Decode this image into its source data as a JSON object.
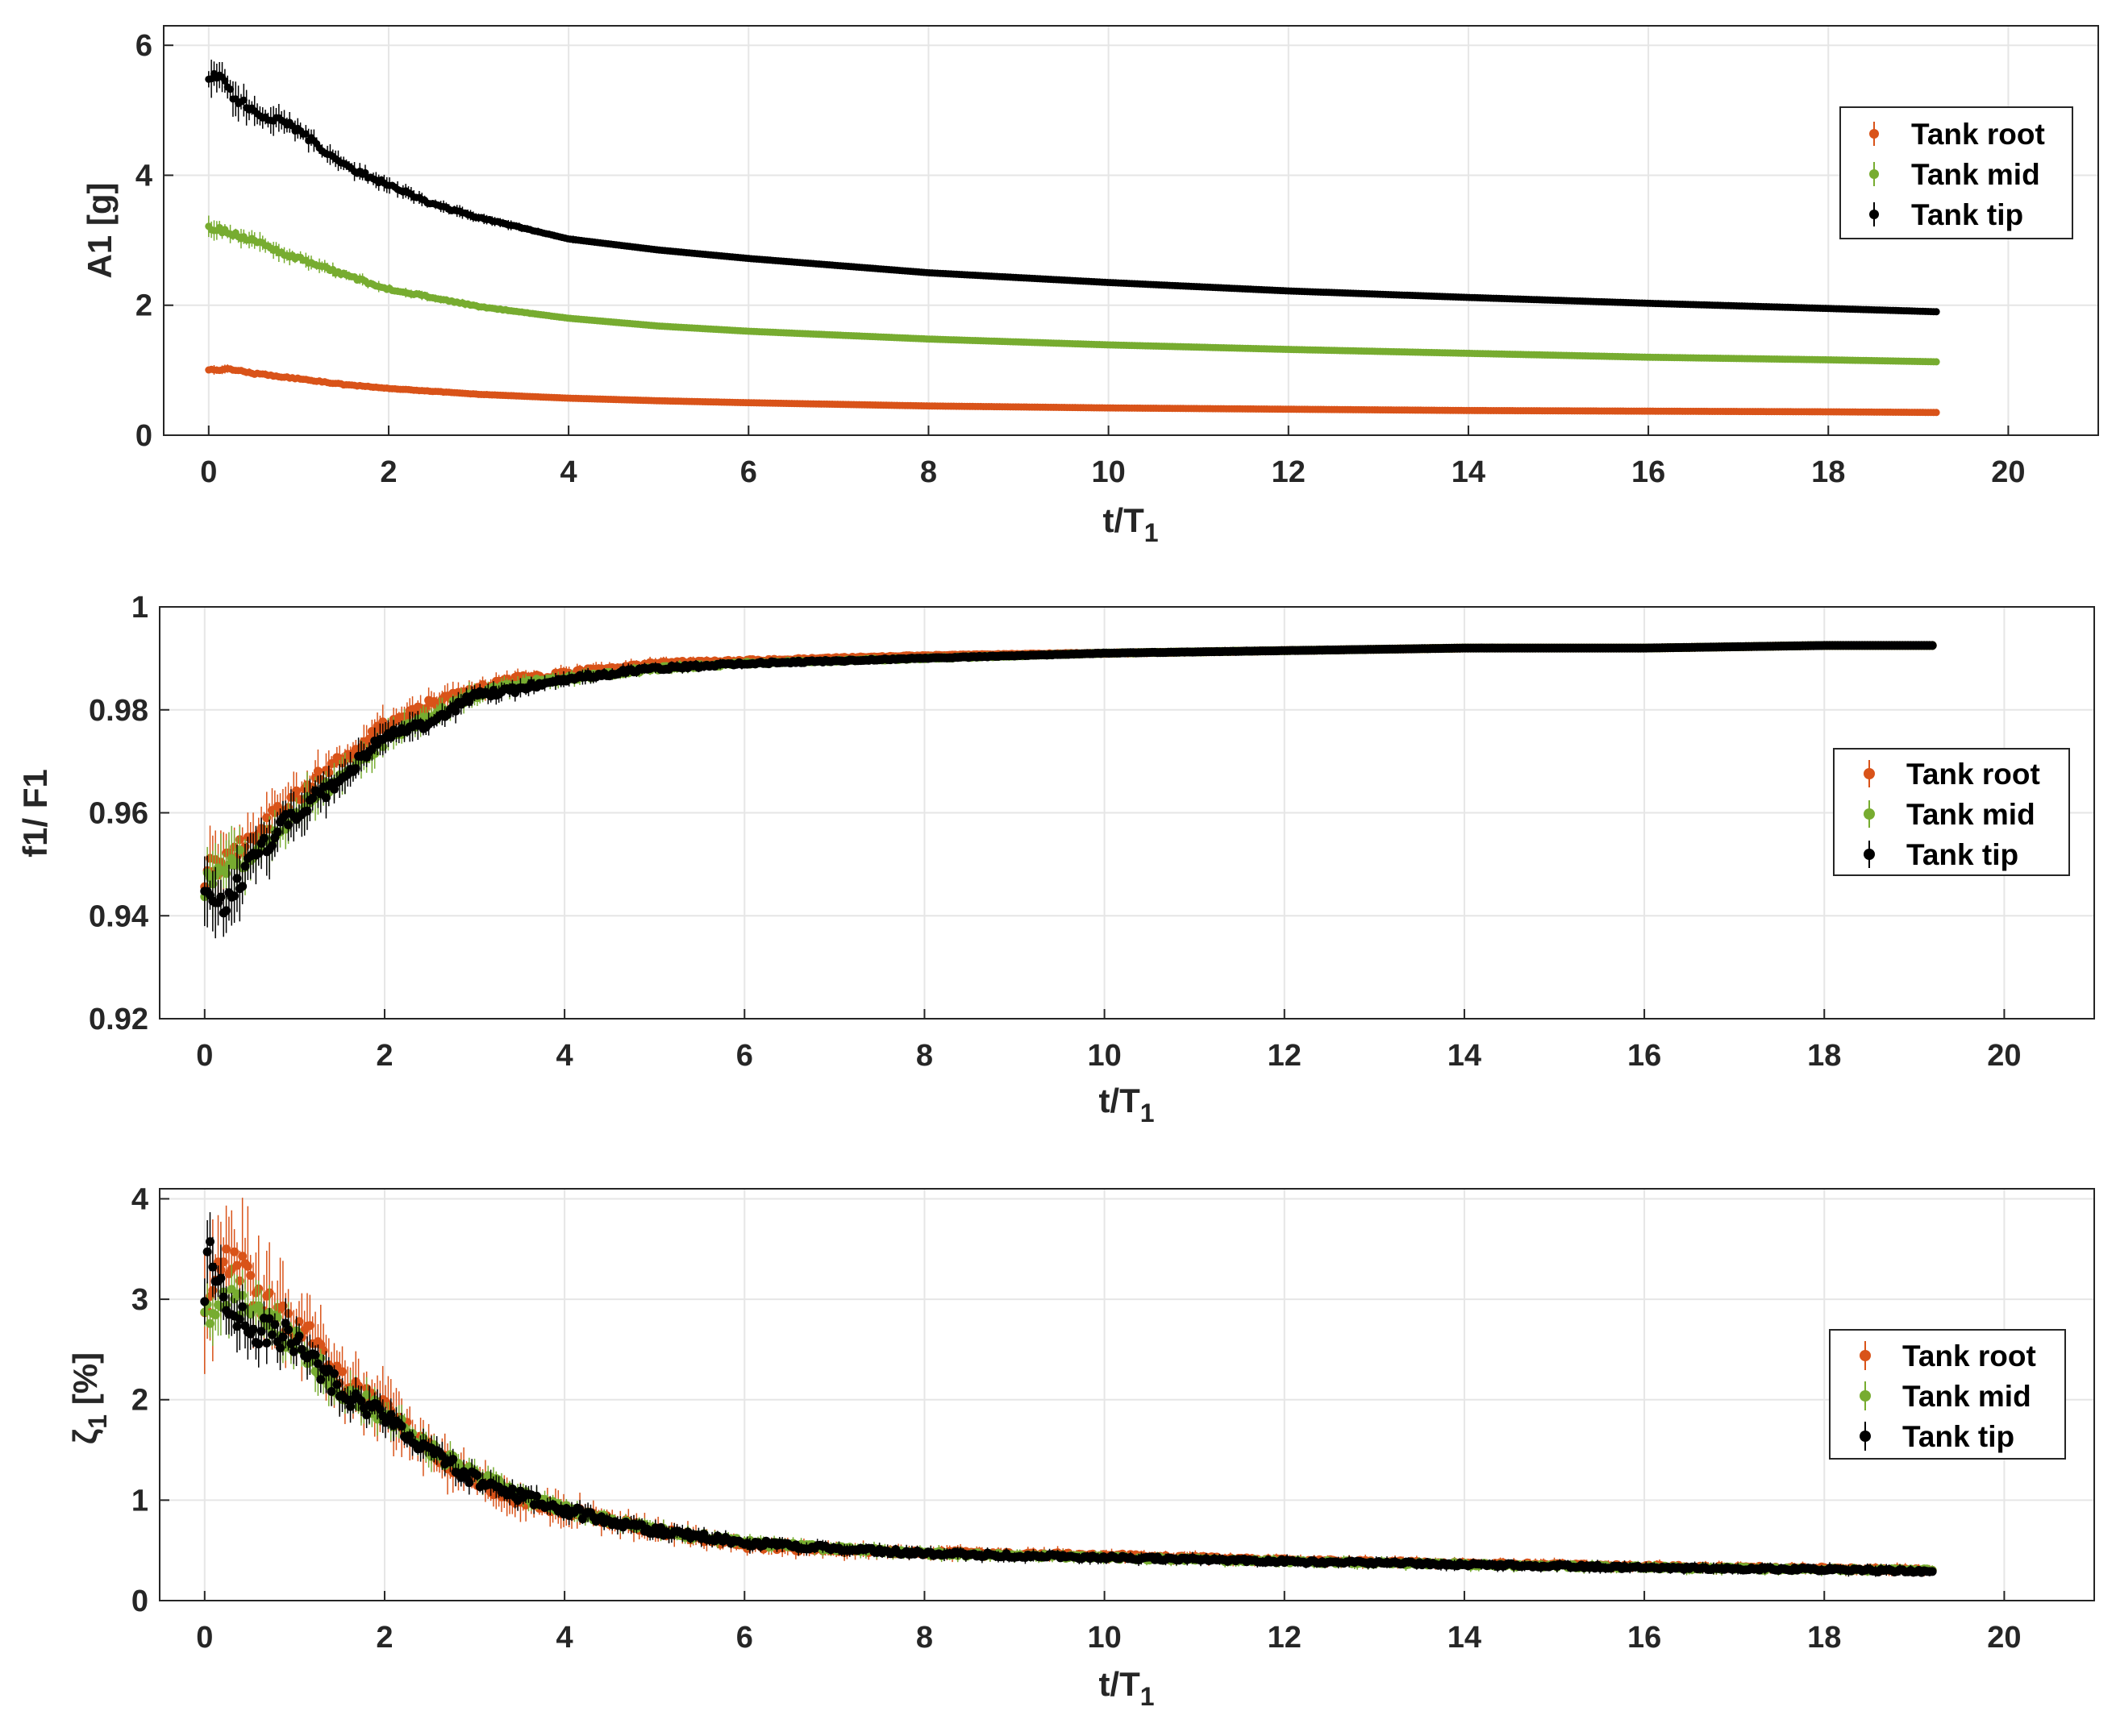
{
  "colors": {
    "root": "#d95319",
    "mid": "#77ac30",
    "tip": "#000000",
    "grid": "#e6e6e6",
    "axis": "#262626"
  },
  "chart_data": [
    {
      "type": "scatter",
      "title": "",
      "xlabel": "t/T",
      "xlabel_sub": "1",
      "ylabel": "A1 [g]",
      "xlim": [
        -0.5,
        21
      ],
      "ylim": [
        0,
        6.3
      ],
      "xticks": [
        "0",
        "2",
        "4",
        "6",
        "8",
        "10",
        "12",
        "14",
        "16",
        "18",
        "20"
      ],
      "yticks": [
        "0",
        "2",
        "4",
        "6"
      ],
      "grid": true,
      "legend_position": "top-right",
      "series": [
        {
          "name": "Tank root",
          "color": "#d95319",
          "x": [
            0.0,
            0.25,
            0.5,
            1.0,
            1.5,
            2.0,
            3.0,
            4.0,
            5.0,
            6.0,
            8.0,
            10.0,
            12.0,
            14.0,
            16.0,
            18.0,
            19.2
          ],
          "values": [
            1.0,
            1.02,
            0.95,
            0.87,
            0.78,
            0.72,
            0.63,
            0.57,
            0.53,
            0.5,
            0.45,
            0.42,
            0.4,
            0.38,
            0.37,
            0.36,
            0.35
          ]
        },
        {
          "name": "Tank mid",
          "color": "#77ac30",
          "x": [
            0.0,
            0.25,
            0.5,
            1.0,
            1.5,
            2.0,
            3.0,
            4.0,
            5.0,
            6.0,
            8.0,
            10.0,
            12.0,
            14.0,
            16.0,
            18.0,
            19.2
          ],
          "values": [
            3.2,
            3.12,
            2.98,
            2.72,
            2.47,
            2.25,
            1.98,
            1.8,
            1.68,
            1.6,
            1.48,
            1.39,
            1.32,
            1.26,
            1.2,
            1.16,
            1.13
          ]
        },
        {
          "name": "Tank tip",
          "color": "#000000",
          "x": [
            0.0,
            0.1,
            0.25,
            0.5,
            1.0,
            1.5,
            2.0,
            2.5,
            3.0,
            4.0,
            5.0,
            6.0,
            8.0,
            10.0,
            12.0,
            14.0,
            16.0,
            18.0,
            19.2
          ],
          "values": [
            5.45,
            5.55,
            5.25,
            5.0,
            4.7,
            4.15,
            3.85,
            3.55,
            3.35,
            3.02,
            2.85,
            2.72,
            2.5,
            2.35,
            2.22,
            2.12,
            2.03,
            1.95,
            1.9
          ]
        }
      ]
    },
    {
      "type": "scatter",
      "title": "",
      "xlabel": "t/T",
      "xlabel_sub": "1",
      "ylabel": "f1/ F1",
      "xlim": [
        -0.5,
        21
      ],
      "ylim": [
        0.92,
        1.0
      ],
      "xticks": [
        "0",
        "2",
        "4",
        "6",
        "8",
        "10",
        "12",
        "14",
        "16",
        "18",
        "20"
      ],
      "yticks": [
        "0.92",
        "0.94",
        "0.96",
        "0.98",
        "1"
      ],
      "grid": true,
      "legend_position": "right",
      "series": [
        {
          "name": "Tank root",
          "color": "#d95319",
          "x": [
            0.0,
            0.5,
            1.0,
            1.5,
            2.0,
            2.5,
            3.0,
            3.5,
            4.0,
            5.0,
            6.0,
            8.0,
            10.0,
            12.0,
            14.0,
            16.0,
            18.0,
            19.2
          ],
          "values": [
            0.948,
            0.955,
            0.963,
            0.97,
            0.977,
            0.981,
            0.984,
            0.986,
            0.987,
            0.989,
            0.9895,
            0.9905,
            0.991,
            0.9915,
            0.992,
            0.992,
            0.9925,
            0.9925
          ]
        },
        {
          "name": "Tank mid",
          "color": "#77ac30",
          "x": [
            0.0,
            0.5,
            1.0,
            1.5,
            2.0,
            2.5,
            3.0,
            3.5,
            4.0,
            5.0,
            6.0,
            8.0,
            10.0,
            12.0,
            14.0,
            16.0,
            18.0,
            19.2
          ],
          "values": [
            0.946,
            0.952,
            0.96,
            0.967,
            0.974,
            0.979,
            0.983,
            0.985,
            0.986,
            0.988,
            0.989,
            0.99,
            0.991,
            0.9915,
            0.992,
            0.992,
            0.9925,
            0.9925
          ]
        },
        {
          "name": "Tank tip",
          "color": "#000000",
          "x": [
            0.0,
            0.15,
            0.3,
            0.5,
            1.0,
            1.5,
            2.0,
            2.5,
            3.0,
            3.5,
            4.0,
            5.0,
            6.0,
            8.0,
            10.0,
            12.0,
            14.0,
            16.0,
            18.0,
            19.2
          ],
          "values": [
            0.947,
            0.942,
            0.944,
            0.95,
            0.96,
            0.966,
            0.975,
            0.977,
            0.983,
            0.984,
            0.986,
            0.988,
            0.989,
            0.99,
            0.991,
            0.9915,
            0.992,
            0.992,
            0.9925,
            0.9925
          ]
        }
      ]
    },
    {
      "type": "scatter",
      "title": "",
      "xlabel": "t/T",
      "xlabel_sub": "1",
      "ylabel": "ζ",
      "ylabel_sub": "1",
      "ylabel_suffix": " [%]",
      "xlim": [
        -0.5,
        21
      ],
      "ylim": [
        0,
        4.1
      ],
      "xticks": [
        "0",
        "2",
        "4",
        "6",
        "8",
        "10",
        "12",
        "14",
        "16",
        "18",
        "20"
      ],
      "yticks": [
        "0",
        "1",
        "2",
        "3",
        "4"
      ],
      "grid": true,
      "legend_position": "right",
      "series": [
        {
          "name": "Tank root",
          "color": "#d95319",
          "x": [
            0.0,
            0.2,
            0.4,
            0.6,
            0.8,
            1.0,
            1.2,
            1.5,
            2.0,
            2.5,
            3.0,
            3.5,
            4.0,
            5.0,
            6.0,
            7.0,
            8.0,
            10.0,
            12.0,
            14.0,
            16.0,
            18.0,
            19.2
          ],
          "values": [
            2.9,
            3.4,
            3.3,
            3.0,
            2.9,
            2.7,
            2.6,
            2.2,
            1.9,
            1.5,
            1.2,
            1.0,
            0.9,
            0.7,
            0.55,
            0.5,
            0.48,
            0.45,
            0.4,
            0.37,
            0.34,
            0.32,
            0.3
          ]
        },
        {
          "name": "Tank mid",
          "color": "#77ac30",
          "x": [
            0.0,
            0.3,
            0.6,
            1.0,
            1.5,
            2.0,
            2.5,
            3.0,
            3.5,
            4.0,
            5.0,
            6.0,
            7.0,
            8.0,
            10.0,
            12.0,
            14.0,
            16.0,
            18.0,
            19.2
          ],
          "values": [
            2.9,
            2.95,
            2.8,
            2.6,
            2.1,
            1.85,
            1.5,
            1.25,
            1.05,
            0.9,
            0.7,
            0.58,
            0.52,
            0.47,
            0.43,
            0.39,
            0.36,
            0.33,
            0.31,
            0.3
          ]
        },
        {
          "name": "Tank tip",
          "color": "#000000",
          "x": [
            0.0,
            0.05,
            0.3,
            0.6,
            1.0,
            1.5,
            2.0,
            2.5,
            3.0,
            3.5,
            4.0,
            5.0,
            6.0,
            7.0,
            8.0,
            10.0,
            12.0,
            14.0,
            16.0,
            18.0,
            19.2
          ],
          "values": [
            3.0,
            3.5,
            2.85,
            2.7,
            2.6,
            2.1,
            1.85,
            1.5,
            1.2,
            1.05,
            0.9,
            0.7,
            0.58,
            0.52,
            0.47,
            0.43,
            0.39,
            0.36,
            0.33,
            0.31,
            0.29
          ]
        }
      ]
    }
  ]
}
